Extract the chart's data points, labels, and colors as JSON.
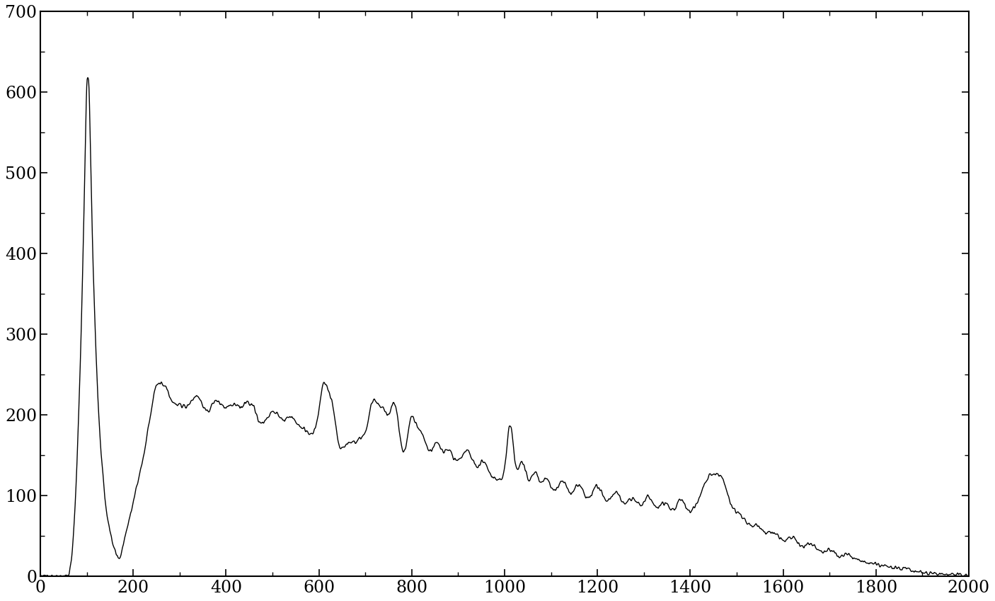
{
  "xlim": [
    0,
    2000
  ],
  "ylim": [
    0,
    700
  ],
  "xticks": [
    0,
    200,
    400,
    600,
    800,
    1000,
    1200,
    1400,
    1600,
    1800,
    2000
  ],
  "yticks": [
    0,
    100,
    200,
    300,
    400,
    500,
    600,
    700
  ],
  "line_color": "#000000",
  "line_width": 1.0,
  "background_color": "#ffffff",
  "figsize": [
    14.06,
    8.49
  ],
  "dpi": 100
}
